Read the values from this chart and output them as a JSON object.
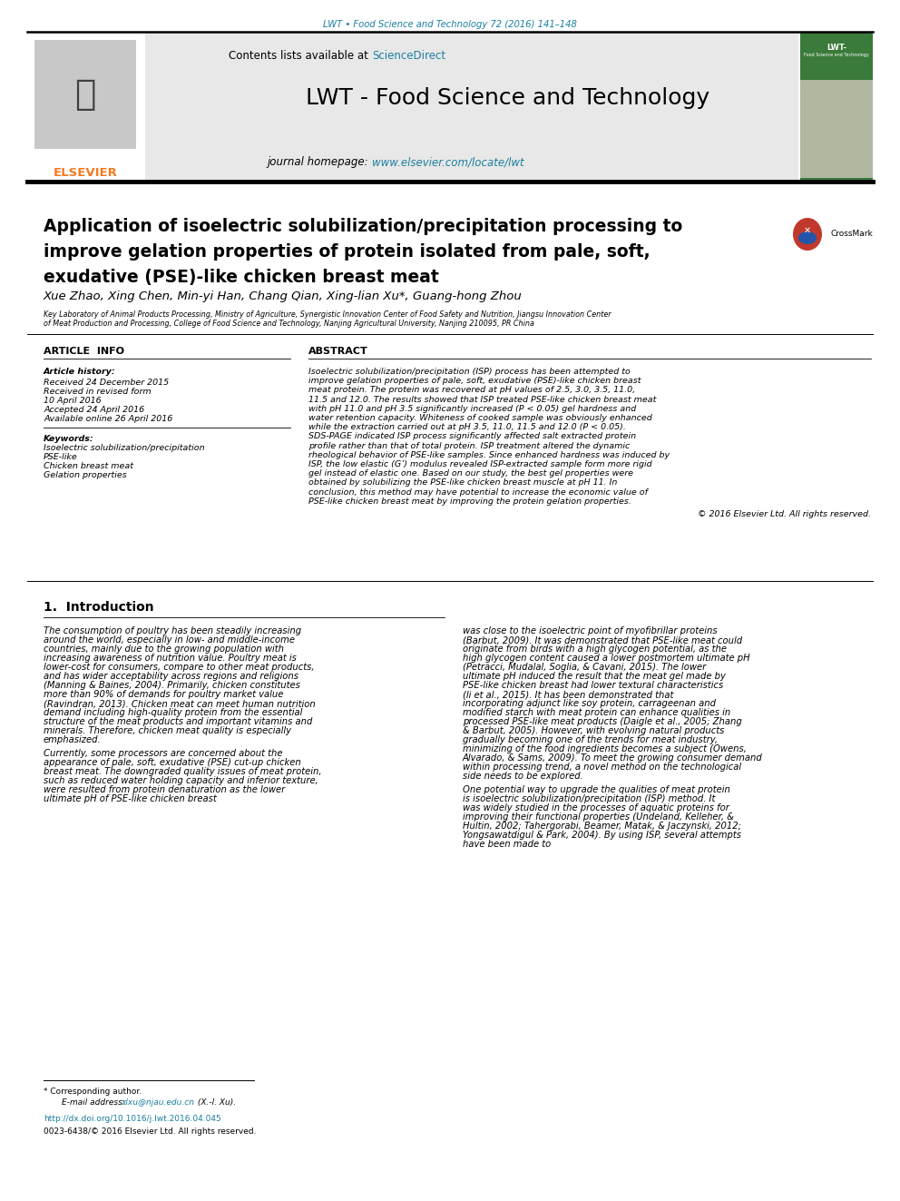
{
  "header_journal_ref": "LWT • Food Science and Technology 72 (2016) 141–148",
  "header_color": "#1a7fa0",
  "journal_name": "LWT - Food Science and Technology",
  "contents_text": "Contents lists available at ",
  "sciencedirect_text": "ScienceDirect",
  "homepage_label": "journal homepage: ",
  "homepage_url": "www.elsevier.com/locate/lwt",
  "elsevier_color": "#f47920",
  "link_color": "#1a7fa0",
  "article_title_line1": "Application of isoelectric solubilization/precipitation processing to",
  "article_title_line2": "improve gelation properties of protein isolated from pale, soft,",
  "article_title_line3": "exudative (PSE)-like chicken breast meat",
  "authors": "Xue Zhao, Xing Chen, Min-yi Han, Chang Qian, Xing-lian Xu*, Guang-hong Zhou",
  "affiliation_line1": "Key Laboratory of Animal Products Processing, Ministry of Agriculture, Synergistic Innovation Center of Food Safety and Nutrition, Jiangsu Innovation Center",
  "affiliation_line2": "of Meat Production and Processing, College of Food Science and Technology, Nanjing Agricultural University, Nanjing 210095, PR China",
  "article_info_header": "ARTICLE INFO",
  "abstract_header": "ABSTRACT",
  "article_history_label": "Article history:",
  "history_lines": [
    "Received 24 December 2015",
    "Received in revised form",
    "10 April 2016",
    "Accepted 24 April 2016",
    "Available online 26 April 2016"
  ],
  "keywords_label": "Keywords:",
  "keywords_lines": [
    "Isoelectric solubilization/precipitation",
    "PSE-like",
    "Chicken breast meat",
    "Gelation properties"
  ],
  "abstract_text": "Isoelectric solubilization/precipitation (ISP) process has been attempted to improve gelation properties of pale, soft, exudative (PSE)-like chicken breast meat protein. The protein was recovered at pH values of 2.5, 3.0, 3.5, 11.0, 11.5 and 12.0. The results showed that ISP treated PSE-like chicken breast meat with pH 11.0 and pH 3.5 significantly increased (P < 0.05) gel hardness and water retention capacity. Whiteness of cooked sample was obviously enhanced while the extraction carried out at pH 3.5, 11.0, 11.5 and 12.0 (P < 0.05). SDS-PAGE indicated ISP process significantly affected salt extracted protein profile rather than that of total protein. ISP treatment altered the dynamic rheological behavior of PSE-like samples. Since enhanced hardness was induced by ISP, the low elastic (G’) modulus revealed ISP-extracted sample form more rigid gel instead of elastic one. Based on our study, the best gel properties were obtained by solubilizing the PSE-like chicken breast muscle at pH 11. In conclusion, this method may have potential to increase the economic value of PSE-like chicken breast meat by improving the protein gelation properties.",
  "copyright_text": "© 2016 Elsevier Ltd. All rights reserved.",
  "intro_header": "1.  Introduction",
  "intro_p1": "    The consumption of poultry has been steadily increasing around the world, especially in low- and middle-income countries, mainly due to the growing population with increasing awareness of nutrition value. Poultry meat is lower-cost for consumers, compare to other meat products, and has wider acceptability across regions and religions (Manning & Baines, 2004). Primarily, chicken constitutes more than 90% of demands for poultry market value (Ravindran, 2013). Chicken meat can meet human nutrition demand including high-quality protein from the essential structure of the meat products and important vitamins and minerals. Therefore, chicken meat quality is especially emphasized.",
  "intro_p2": "    Currently, some processors are concerned about the appearance of pale, soft, exudative (PSE) cut-up chicken breast meat. The downgraded quality issues of meat protein, such as reduced water holding capacity and inferior texture, were resulted from protein denaturation as the lower ultimate pH of PSE-like chicken breast",
  "intro_col2_p1": "was close to the isoelectric point of myofibrillar proteins (Barbut, 2009). It was demonstrated that PSE-like meat could originate from birds with a high glycogen potential, as the high glycogen content caused a lower postmortem ultimate pH (Petracci, Mudalal, Soglia, & Cavani, 2015). The lower ultimate pH induced the result that the meat gel made by PSE-like chicken breast had lower textural characteristics (li et al., 2015). It has been demonstrated that incorporating adjunct like soy protein, carrageenan and modified starch with meat protein can enhance qualities in processed PSE-like meat products (Daigle et al., 2005; Zhang & Barbut, 2005). However, with evolving natural products gradually becoming one of the trends for meat industry, minimizing of the food ingredients becomes a subject (Owens, Alvarado, & Sams, 2009). To meet the growing consumer demand within processing trend, a novel method on the technological side needs to be explored.",
  "intro_col2_p2": "    One potential way to upgrade the qualities of meat protein is isoelectric solubilization/precipitation (ISP) method. It was widely studied in the processes of aquatic proteins for improving their functional properties (Undeland, Kelleher, & Hultin, 2002; Tahergorabi, Beamer, Matak, & Jaczynski, 2012; Yongsawatdigul & Park, 2004). By using ISP, several attempts have been made to",
  "footnote_star": "* Corresponding author.",
  "footnote_email_label": "E-mail address: ",
  "footnote_email": "xlxu@njau.edu.cn",
  "footnote_email_end": " (X.-l. Xu).",
  "doi_text": "http://dx.doi.org/10.1016/j.lwt.2016.04.045",
  "issn_text": "0023-6438/© 2016 Elsevier Ltd. All rights reserved.",
  "bg_color": "#ffffff",
  "text_color": "#000000",
  "banner_bg": "#e8e8e8",
  "cover_green": "#3a7a3a",
  "cover_dark": "#1a4a1a"
}
